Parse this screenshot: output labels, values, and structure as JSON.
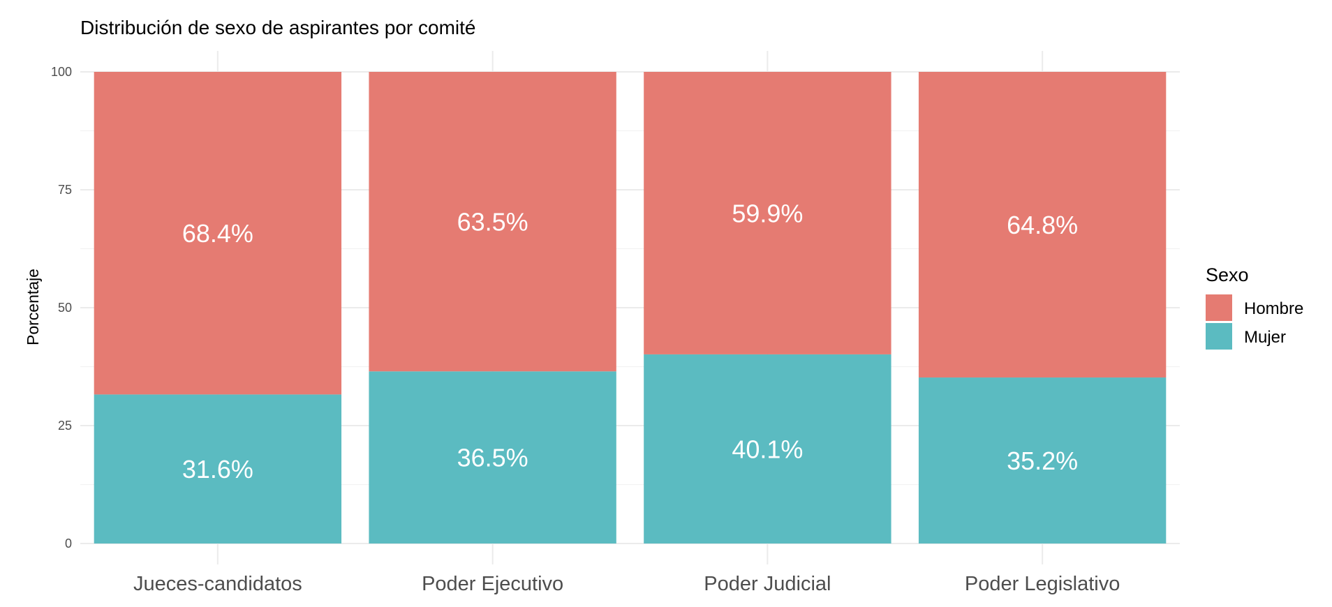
{
  "chart_data": {
    "type": "bar",
    "stacked": true,
    "title": "Distribución de sexo de aspirantes por comité",
    "xlabel": "",
    "ylabel": "Porcentaje",
    "ylim": [
      0,
      100
    ],
    "yticks": [
      0,
      25,
      50,
      75,
      100
    ],
    "categories": [
      "Jueces-candidatos",
      "Poder Ejecutivo",
      "Poder Judicial",
      "Poder Legislativo"
    ],
    "series": [
      {
        "name": "Mujer",
        "color": "#5BBBC1",
        "values": [
          31.6,
          36.5,
          40.1,
          35.2
        ],
        "labels": [
          "31.6%",
          "36.5%",
          "40.1%",
          "35.2%"
        ]
      },
      {
        "name": "Hombre",
        "color": "#E57B72",
        "values": [
          68.4,
          63.5,
          59.9,
          64.8
        ],
        "labels": [
          "68.4%",
          "63.5%",
          "59.9%",
          "64.8%"
        ]
      }
    ],
    "legend": {
      "title": "Sexo",
      "position": "right",
      "entries": [
        "Hombre",
        "Mujer"
      ]
    },
    "grid": true
  }
}
